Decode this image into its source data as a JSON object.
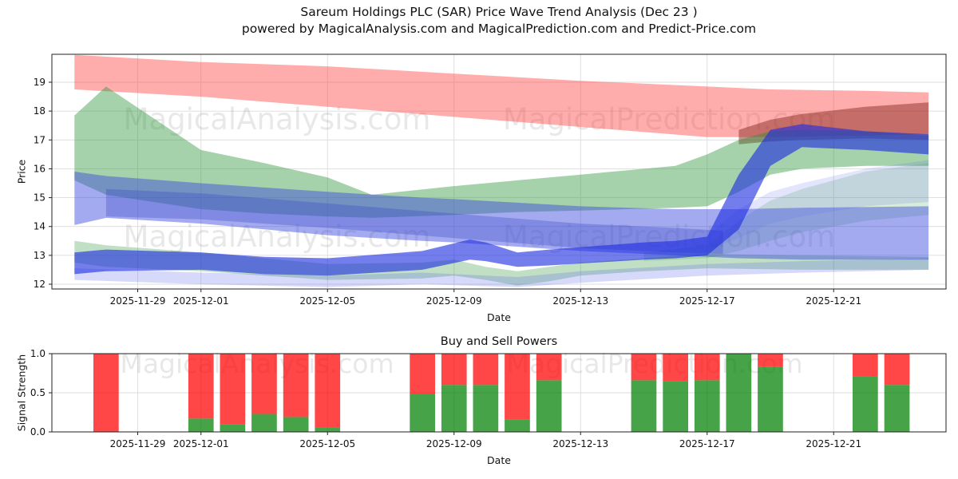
{
  "title": "Sareum Holdings PLC (SAR) Price Wave Trend Analysis (Dec 23 )",
  "subtitle": "powered by MagicalAnalysis.com and MagicalPrediction.com and Predict-Price.com",
  "watermark": {
    "left": "MagicalAnalysis.com",
    "right": "MagicalPrediction.com"
  },
  "chart_data": [
    {
      "type": "area",
      "name": "price-wave-trend",
      "xlabel": "Date",
      "ylabel": "Price",
      "day_zero_date": "2025-11-27",
      "ylim": [
        11.83,
        19.97
      ],
      "xlim_days": [
        -0.71,
        27.55
      ],
      "yticks": [
        12,
        13,
        14,
        15,
        16,
        17,
        18,
        19
      ],
      "xticks": [
        {
          "day": 2,
          "label": "2025-11-29"
        },
        {
          "day": 4,
          "label": "2025-12-01"
        },
        {
          "day": 8,
          "label": "2025-12-05"
        },
        {
          "day": 12,
          "label": "2025-12-09"
        },
        {
          "day": 16,
          "label": "2025-12-13"
        },
        {
          "day": 20,
          "label": "2025-12-17"
        },
        {
          "day": 24,
          "label": "2025-12-21"
        }
      ],
      "grid": true,
      "bands": [
        {
          "name": "red-band",
          "color": "rgba(255,70,70,0.45)",
          "points": [
            [
              0,
              18.75,
              19.95
            ],
            [
              4,
              18.5,
              19.7
            ],
            [
              8,
              18.15,
              19.55
            ],
            [
              12,
              17.8,
              19.3
            ],
            [
              16,
              17.45,
              19.05
            ],
            [
              20,
              17.1,
              18.85
            ],
            [
              22,
              17.1,
              18.75
            ],
            [
              25,
              17.15,
              18.7
            ],
            [
              27,
              17.2,
              18.65
            ]
          ]
        },
        {
          "name": "dark-red-band",
          "color": "rgba(140,45,35,0.5)",
          "points": [
            [
              21,
              16.85,
              17.35
            ],
            [
              22,
              16.95,
              17.7
            ],
            [
              23,
              17.0,
              17.9
            ],
            [
              25,
              17.05,
              18.15
            ],
            [
              27,
              17.0,
              18.3
            ]
          ]
        },
        {
          "name": "big-green-band",
          "color": "rgba(40,145,55,0.42)",
          "points": [
            [
              0,
              15.6,
              17.85
            ],
            [
              1,
              15.1,
              18.85
            ],
            [
              4,
              14.6,
              16.65
            ],
            [
              6,
              14.45,
              16.2
            ],
            [
              8,
              14.35,
              15.7
            ],
            [
              9.4,
              14.3,
              15.1
            ],
            [
              12,
              14.4,
              15.4
            ],
            [
              14,
              14.5,
              15.6
            ],
            [
              16,
              14.55,
              15.8
            ],
            [
              19,
              14.65,
              16.1
            ],
            [
              20,
              14.7,
              16.5
            ],
            [
              21,
              15.2,
              17.0
            ],
            [
              22,
              15.8,
              17.3
            ],
            [
              23,
              16.0,
              17.35
            ],
            [
              25,
              16.1,
              17.3
            ],
            [
              27,
              16.1,
              17.15
            ]
          ]
        },
        {
          "name": "low-green-band",
          "color": "rgba(50,150,60,0.30)",
          "points": [
            [
              0,
              12.75,
              13.5
            ],
            [
              1,
              12.6,
              13.35
            ],
            [
              4,
              12.45,
              13.1
            ],
            [
              6,
              12.3,
              12.9
            ],
            [
              8,
              12.15,
              12.7
            ],
            [
              11,
              12.2,
              12.75
            ],
            [
              12,
              12.3,
              12.85
            ],
            [
              13,
              12.15,
              12.6
            ],
            [
              14,
              11.95,
              12.45
            ],
            [
              15,
              12.1,
              12.6
            ],
            [
              16,
              12.3,
              12.75
            ],
            [
              18,
              12.45,
              12.9
            ],
            [
              20,
              12.55,
              13.05
            ],
            [
              23,
              12.5,
              13.0
            ],
            [
              27,
              12.5,
              12.95
            ]
          ]
        },
        {
          "name": "green-fan-band",
          "color": "rgba(60,160,70,0.20)",
          "points": [
            [
              18,
              12.8,
              13.1
            ],
            [
              20,
              12.9,
              13.35
            ],
            [
              21,
              13.15,
              14.2
            ],
            [
              22,
              13.5,
              14.9
            ],
            [
              23,
              13.8,
              15.3
            ],
            [
              25,
              14.2,
              15.9
            ],
            [
              27,
              14.4,
              16.2
            ]
          ]
        },
        {
          "name": "big-blue-band",
          "color": "rgba(60,75,220,0.47)",
          "points": [
            [
              0,
              14.05,
              15.9
            ],
            [
              1,
              14.3,
              15.75
            ],
            [
              4,
              14.1,
              15.5
            ],
            [
              6,
              13.9,
              15.35
            ],
            [
              8,
              13.7,
              15.2
            ],
            [
              11,
              13.5,
              15.0
            ],
            [
              12,
              13.45,
              14.95
            ],
            [
              16,
              13.15,
              14.7
            ],
            [
              19,
              13.0,
              14.6
            ],
            [
              21,
              12.9,
              14.6
            ],
            [
              23,
              12.85,
              14.65
            ],
            [
              27,
              12.85,
              14.7
            ]
          ]
        },
        {
          "name": "blue-core-band",
          "color": "rgba(50,65,200,0.30)",
          "points": [
            [
              1,
              14.35,
              15.3
            ],
            [
              4,
              14.25,
              15.15
            ],
            [
              8,
              13.95,
              14.8
            ],
            [
              12,
              13.6,
              14.45
            ],
            [
              16,
              13.25,
              14.1
            ],
            [
              19,
              13.1,
              13.95
            ],
            [
              20.5,
              13.05,
              13.85
            ]
          ]
        },
        {
          "name": "low-blue-band",
          "color": "rgba(90,105,235,0.25)",
          "points": [
            [
              0,
              12.15,
              12.55
            ],
            [
              4,
              12.0,
              12.4
            ],
            [
              8,
              11.9,
              12.3
            ],
            [
              11,
              12.0,
              12.4
            ],
            [
              14,
              11.9,
              12.25
            ],
            [
              16,
              12.05,
              12.45
            ],
            [
              20,
              12.3,
              12.7
            ],
            [
              23,
              12.4,
              12.8
            ],
            [
              27,
              12.5,
              12.9
            ]
          ]
        },
        {
          "name": "blue-fan-band",
          "color": "rgba(95,110,235,0.18)",
          "points": [
            [
              20,
              13.2,
              13.7
            ],
            [
              21,
              13.6,
              14.6
            ],
            [
              22,
              14.1,
              15.2
            ],
            [
              23,
              14.35,
              15.5
            ],
            [
              25,
              14.7,
              16.0
            ],
            [
              27,
              14.85,
              16.3
            ]
          ]
        },
        {
          "name": "royal-blue-band",
          "color": "rgba(30,45,225,0.62)",
          "points": [
            [
              0,
              12.35,
              13.1
            ],
            [
              1,
              12.45,
              13.2
            ],
            [
              4,
              12.5,
              13.1
            ],
            [
              6,
              12.35,
              12.95
            ],
            [
              8,
              12.3,
              12.9
            ],
            [
              11,
              12.5,
              13.15
            ],
            [
              12.5,
              12.85,
              13.55
            ],
            [
              13,
              12.8,
              13.45
            ],
            [
              14,
              12.6,
              13.1
            ],
            [
              15,
              12.65,
              13.2
            ],
            [
              18,
              12.85,
              13.45
            ],
            [
              19,
              12.9,
              13.5
            ],
            [
              20,
              13.0,
              13.65
            ],
            [
              21,
              13.9,
              15.8
            ],
            [
              22,
              16.1,
              17.35
            ],
            [
              23,
              16.75,
              17.55
            ],
            [
              25,
              16.65,
              17.3
            ],
            [
              27,
              16.5,
              17.2
            ]
          ]
        }
      ]
    },
    {
      "type": "bar",
      "name": "buy-sell-powers",
      "title": "Buy and Sell Powers",
      "xlabel": "Date",
      "ylabel": "Signal Strength",
      "ylim": [
        0.0,
        1.0
      ],
      "yticks": [
        0.0,
        0.5,
        1.0
      ],
      "ytick_labels": [
        "0.0",
        "0.5",
        "1.0"
      ],
      "xticks": [
        {
          "day": 2,
          "label": "2025-11-29"
        },
        {
          "day": 4,
          "label": "2025-12-01"
        },
        {
          "day": 8,
          "label": "2025-12-05"
        },
        {
          "day": 12,
          "label": "2025-12-09"
        },
        {
          "day": 16,
          "label": "2025-12-13"
        },
        {
          "day": 20,
          "label": "2025-12-17"
        },
        {
          "day": 24,
          "label": "2025-12-21"
        }
      ],
      "grid": true,
      "buy_color": "rgba(0,128,0,0.72)",
      "sell_color": "rgba(255,0,0,0.72)",
      "bars": [
        {
          "date": "2025-11-28",
          "day": 1,
          "buy": 0.0,
          "sell": 1.0
        },
        {
          "date": "2025-12-01",
          "day": 4,
          "buy": 0.17,
          "sell": 0.83
        },
        {
          "date": "2025-12-02",
          "day": 5,
          "buy": 0.1,
          "sell": 0.9
        },
        {
          "date": "2025-12-03",
          "day": 6,
          "buy": 0.23,
          "sell": 0.77
        },
        {
          "date": "2025-12-04",
          "day": 7,
          "buy": 0.19,
          "sell": 0.81
        },
        {
          "date": "2025-12-05",
          "day": 8,
          "buy": 0.06,
          "sell": 0.94
        },
        {
          "date": "2025-12-08",
          "day": 11,
          "buy": 0.49,
          "sell": 0.51
        },
        {
          "date": "2025-12-09",
          "day": 12,
          "buy": 0.6,
          "sell": 0.4
        },
        {
          "date": "2025-12-10",
          "day": 13,
          "buy": 0.6,
          "sell": 0.4
        },
        {
          "date": "2025-12-11",
          "day": 14,
          "buy": 0.16,
          "sell": 0.84
        },
        {
          "date": "2025-12-12",
          "day": 15,
          "buy": 0.66,
          "sell": 0.34
        },
        {
          "date": "2025-12-15",
          "day": 18,
          "buy": 0.66,
          "sell": 0.34
        },
        {
          "date": "2025-12-16",
          "day": 19,
          "buy": 0.65,
          "sell": 0.35
        },
        {
          "date": "2025-12-17",
          "day": 20,
          "buy": 0.66,
          "sell": 0.34
        },
        {
          "date": "2025-12-18",
          "day": 21,
          "buy": 1.0,
          "sell": 0.0
        },
        {
          "date": "2025-12-19",
          "day": 22,
          "buy": 0.83,
          "sell": 0.17
        },
        {
          "date": "2025-12-22",
          "day": 25,
          "buy": 0.71,
          "sell": 0.29
        },
        {
          "date": "2025-12-23",
          "day": 26,
          "buy": 0.6,
          "sell": 0.4
        }
      ]
    }
  ]
}
